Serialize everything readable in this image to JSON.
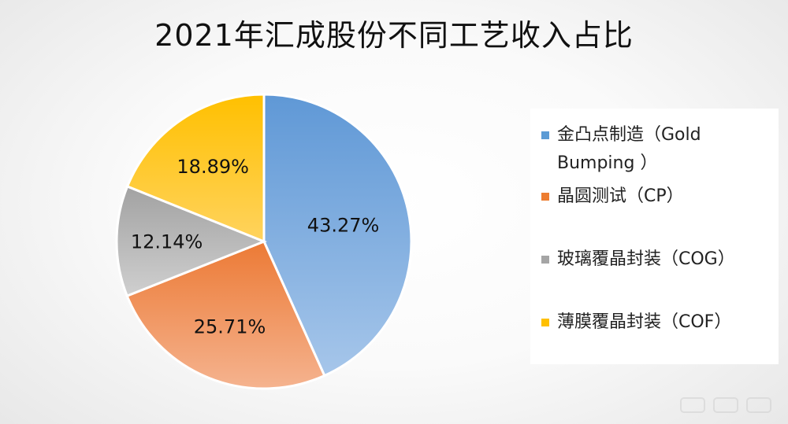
{
  "chart_data": {
    "type": "pie",
    "title": "2021年汇成股份不同工艺收入占比",
    "slices": [
      {
        "name": "金凸点制造（Gold Bumping ）",
        "value": 43.27,
        "label": "43.27%",
        "color": "#6a9fd8"
      },
      {
        "name": "晶圆测试（CP）",
        "value": 25.71,
        "label": "25.71%",
        "color": "#ef8f55"
      },
      {
        "name": "玻璃覆晶封装（COG）",
        "value": 12.14,
        "label": "12.14%",
        "color": "#b0b0b0"
      },
      {
        "name": "薄膜覆晶封装（COF）",
        "value": 18.89,
        "label": "18.89%",
        "color": "#ffc21a"
      }
    ],
    "legend": {
      "placement": "right",
      "items": [
        {
          "lines": [
            "金凸点制造（Gold",
            "Bumping ）"
          ],
          "color": "#5b9bd5"
        },
        {
          "lines": [
            "晶圆测试（CP）"
          ],
          "color": "#ed7d31"
        },
        {
          "lines": [
            "玻璃覆晶封装（COG）"
          ],
          "color": "#a5a5a5"
        },
        {
          "lines": [
            "薄膜覆晶封装（COF）"
          ],
          "color": "#ffc000"
        }
      ]
    }
  }
}
